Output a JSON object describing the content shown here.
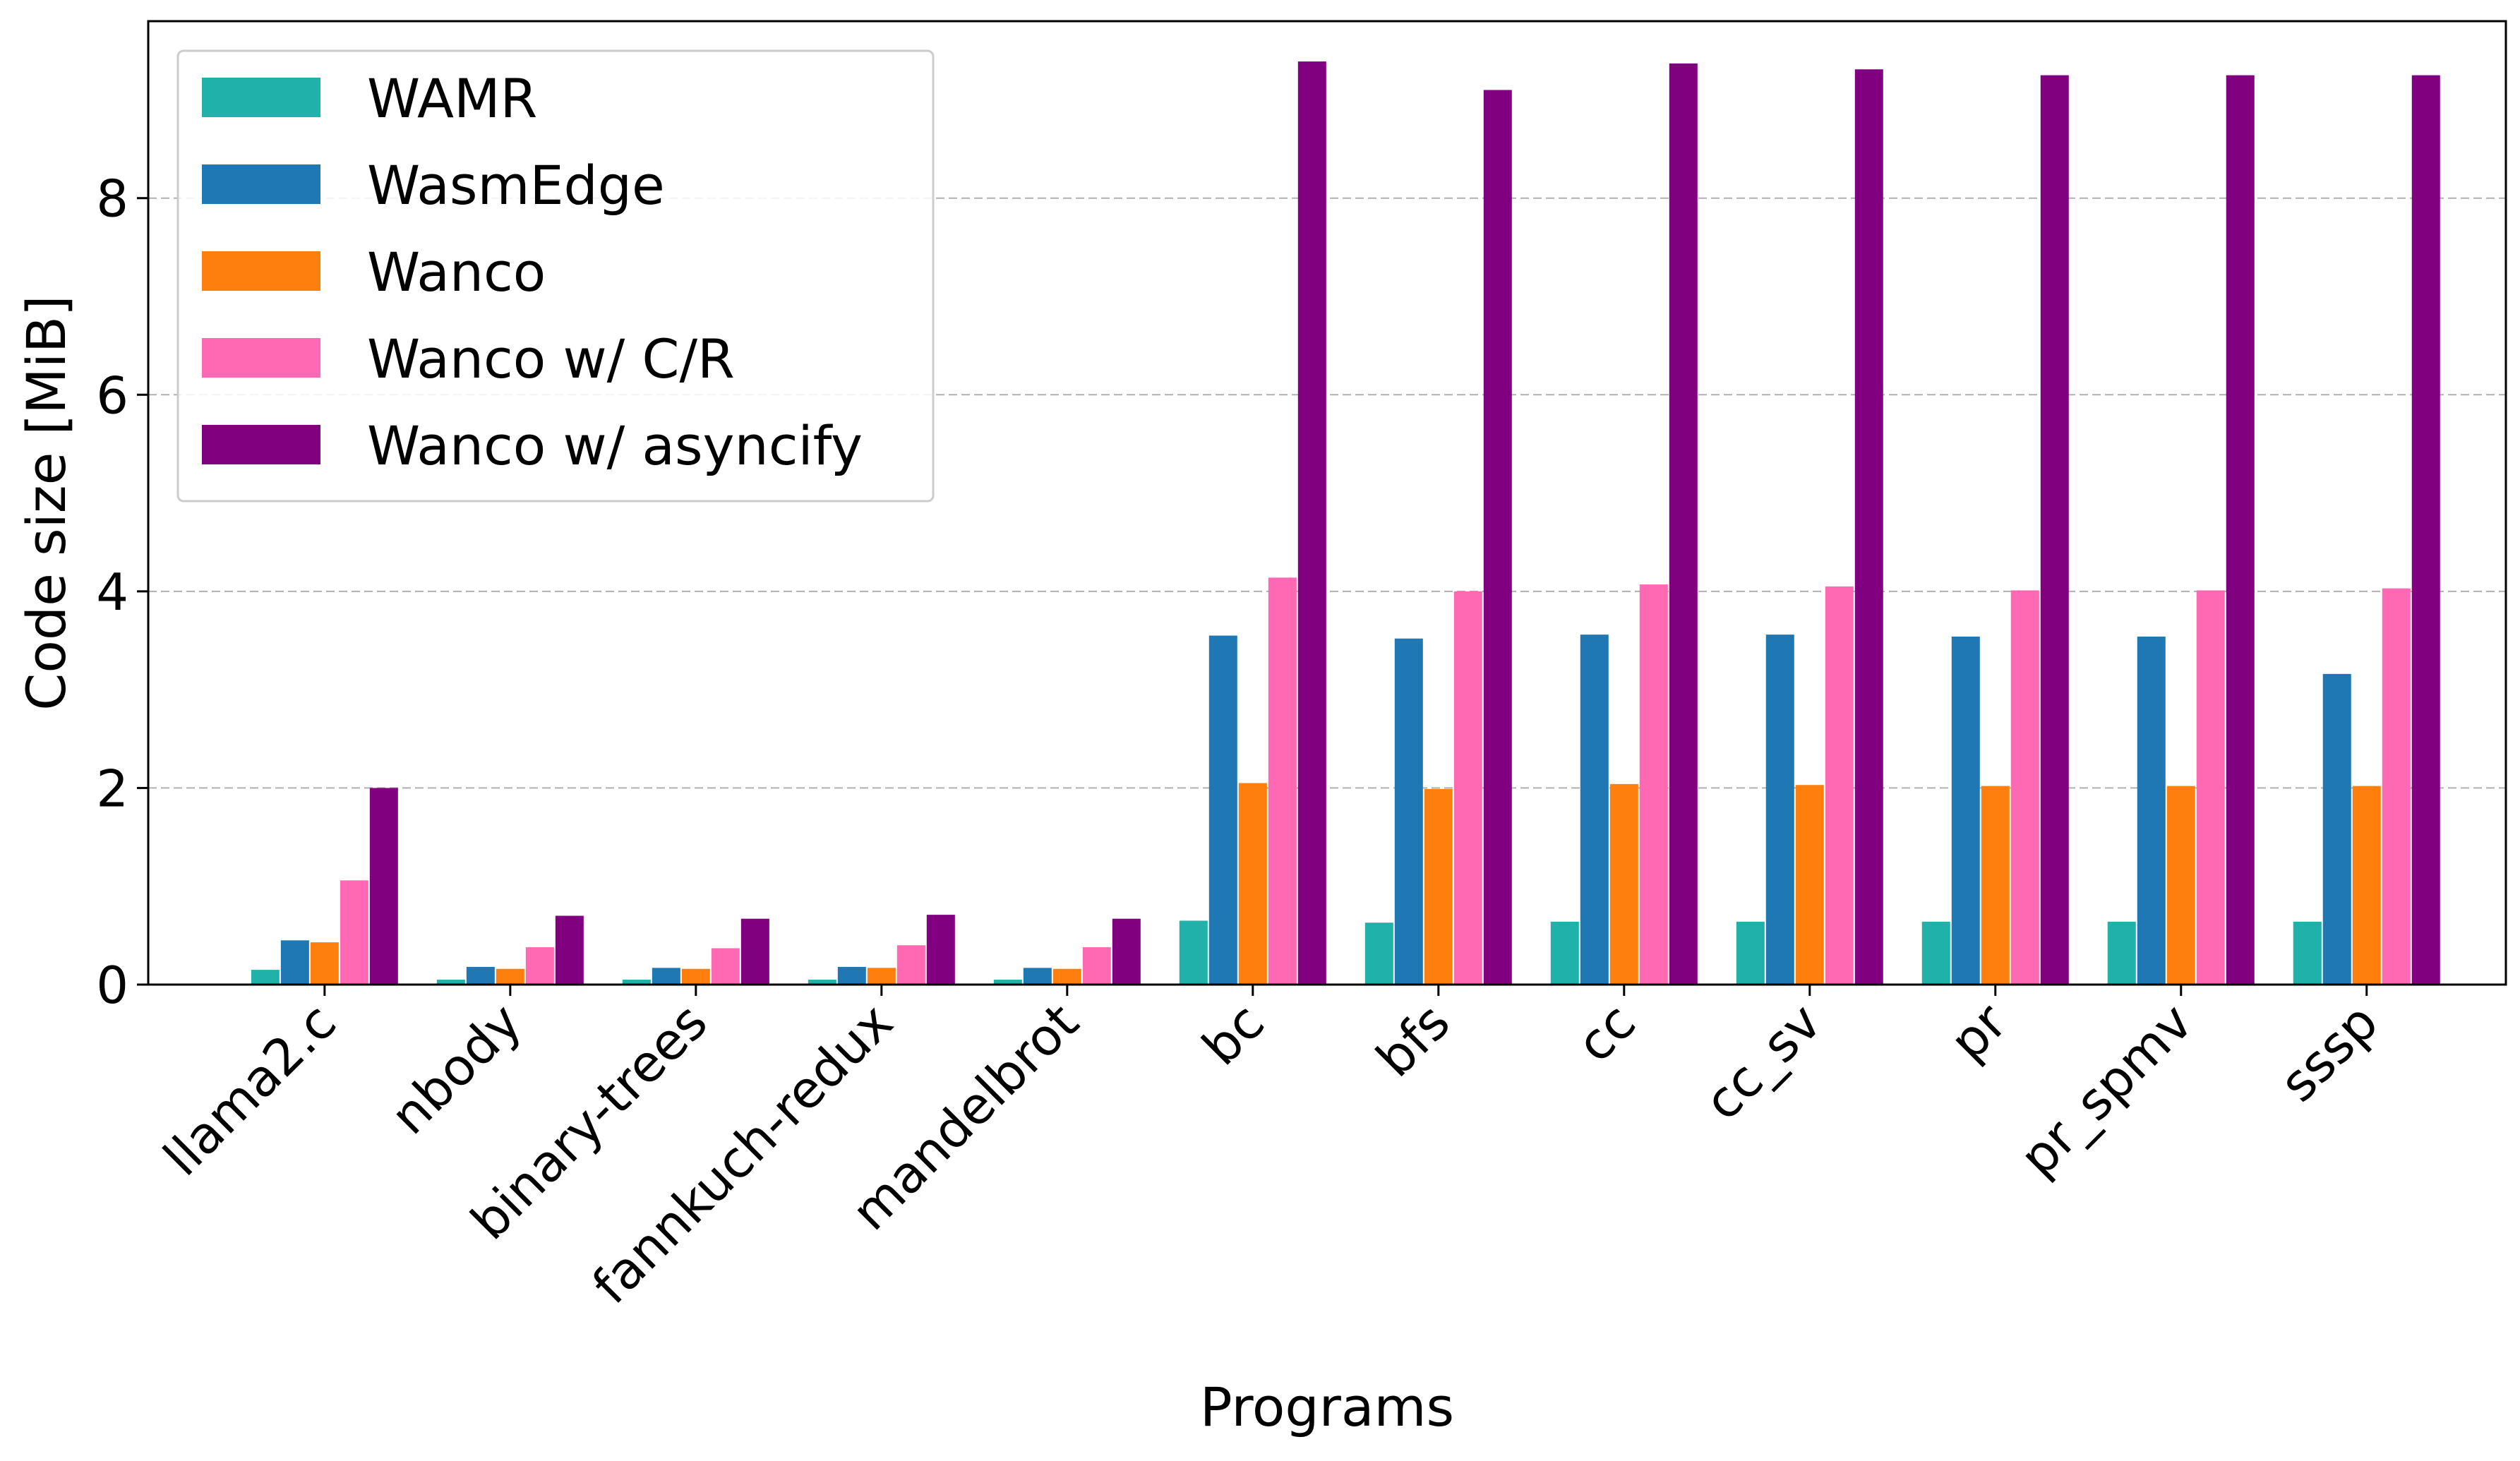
{
  "chart_data": {
    "type": "bar",
    "xlabel": "Programs",
    "ylabel": "Code size [MiB]",
    "ylim": [
      0,
      9.8
    ],
    "yticks": [
      0,
      2,
      4,
      6,
      8
    ],
    "grid": "y-dashed",
    "legend_position": "top-left",
    "categories": [
      "llama2.c",
      "nbody",
      "binary-trees",
      "fannkuch-redux",
      "mandelbrot",
      "bc",
      "bfs",
      "cc",
      "cc_sv",
      "pr",
      "pr_spmv",
      "sssp"
    ],
    "series": [
      {
        "name": "WAMR",
        "color": "#20b2aa",
        "values": [
          0.15,
          0.05,
          0.05,
          0.05,
          0.05,
          0.65,
          0.63,
          0.64,
          0.64,
          0.64,
          0.64,
          0.64
        ]
      },
      {
        "name": "WasmEdge",
        "color": "#1f77b4",
        "values": [
          0.45,
          0.18,
          0.17,
          0.18,
          0.17,
          3.55,
          3.52,
          3.56,
          3.56,
          3.54,
          3.54,
          3.16
        ]
      },
      {
        "name": "Wanco",
        "color": "#ff7f0e",
        "values": [
          0.43,
          0.16,
          0.16,
          0.17,
          0.16,
          2.05,
          1.99,
          2.04,
          2.03,
          2.02,
          2.02,
          2.02
        ]
      },
      {
        "name": "Wanco w/ C/R",
        "color": "#ff69b4",
        "values": [
          1.06,
          0.38,
          0.37,
          0.4,
          0.38,
          4.14,
          4.0,
          4.07,
          4.05,
          4.01,
          4.01,
          4.03
        ]
      },
      {
        "name": "Wanco w/ asyncify",
        "color": "#800080",
        "values": [
          2.0,
          0.7,
          0.67,
          0.71,
          0.67,
          9.39,
          9.1,
          9.37,
          9.31,
          9.25,
          9.25,
          9.25
        ]
      }
    ]
  }
}
